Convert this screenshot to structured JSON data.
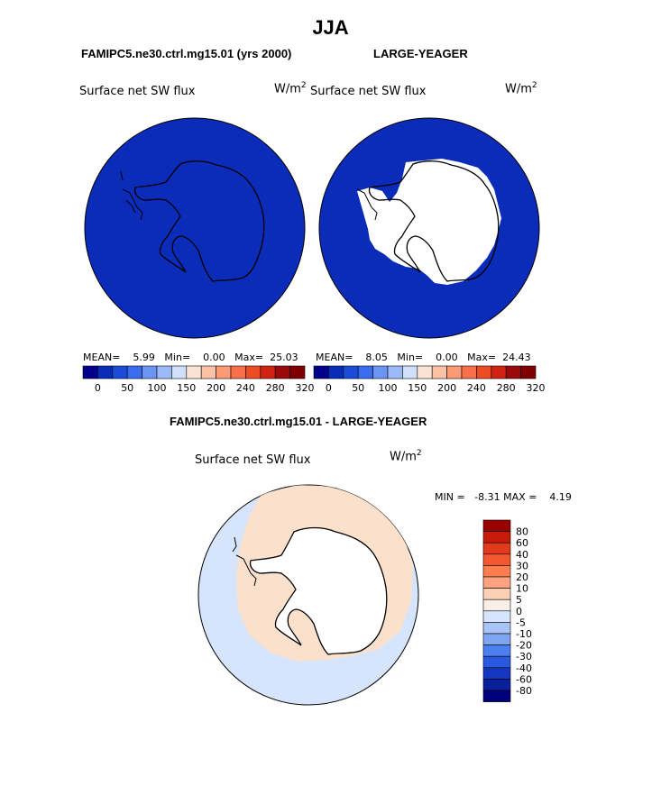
{
  "page_title": "JJA",
  "top_panels": [
    {
      "case_title": "FAMIPC5.ne30.ctrl.mg15.01 (yrs 2000)",
      "field_label": "Surface net SW flux",
      "units": "W/m",
      "units_exp": "2",
      "stats": {
        "mean_label": "MEAN=",
        "mean": "5.99",
        "min_label": "Min=",
        "min": "0.00",
        "max_label": "Max=",
        "max": "25.03"
      },
      "ocean_color": "#0a2cb8",
      "land_color": "#0a2cb8"
    },
    {
      "case_title": "LARGE-YEAGER",
      "field_label": "Surface net SW flux",
      "units": "W/m",
      "units_exp": "2",
      "stats": {
        "mean_label": "MEAN=",
        "mean": "8.05",
        "min_label": "Min=",
        "min": "0.00",
        "max_label": "Max=",
        "max": "24.43"
      },
      "ocean_color": "#0a2cb8",
      "land_color": "#ffffff"
    }
  ],
  "top_colorbar": {
    "colors": [
      "#00008b",
      "#0a2cb8",
      "#1a4bd9",
      "#3a6cf0",
      "#6b95f5",
      "#9cbaf7",
      "#d0e0fa",
      "#fbe3d3",
      "#fcc2a5",
      "#fb9a75",
      "#f7704a",
      "#ee4a24",
      "#cf2210",
      "#9a0a0a",
      "#7f0000"
    ],
    "tick_labels": [
      "0",
      "50",
      "100",
      "150",
      "200",
      "240",
      "280",
      "320"
    ]
  },
  "diff_panel": {
    "title": "FAMIPC5.ne30.ctrl.mg15.01 - LARGE-YEAGER",
    "field_label": "Surface net SW flux",
    "units": "W/m",
    "units_exp": "2",
    "minmax": {
      "min_label": "MIN =",
      "min": "-8.31",
      "max_label": "MAX =",
      "max": "4.19"
    },
    "colorbar": {
      "colors_top_to_bottom": [
        "#9b0000",
        "#c81c0a",
        "#e23a1a",
        "#f4582e",
        "#fb7e50",
        "#fca482",
        "#fbd0b4",
        "#f7efe8",
        "#d6e5fb",
        "#a9c4f6",
        "#7ea5f0",
        "#4d7ff0",
        "#2a58e0",
        "#1636c2",
        "#0a1f9a",
        "#00007a"
      ],
      "tick_labels": [
        "80",
        "60",
        "40",
        "30",
        "20",
        "10",
        "5",
        "0",
        "-5",
        "-10",
        "-20",
        "-30",
        "-40",
        "-60",
        "-80"
      ]
    },
    "field_colors": {
      "ocean": "#d6e5fb",
      "ring": "#fbe1cc",
      "land": "#ffffff"
    }
  }
}
